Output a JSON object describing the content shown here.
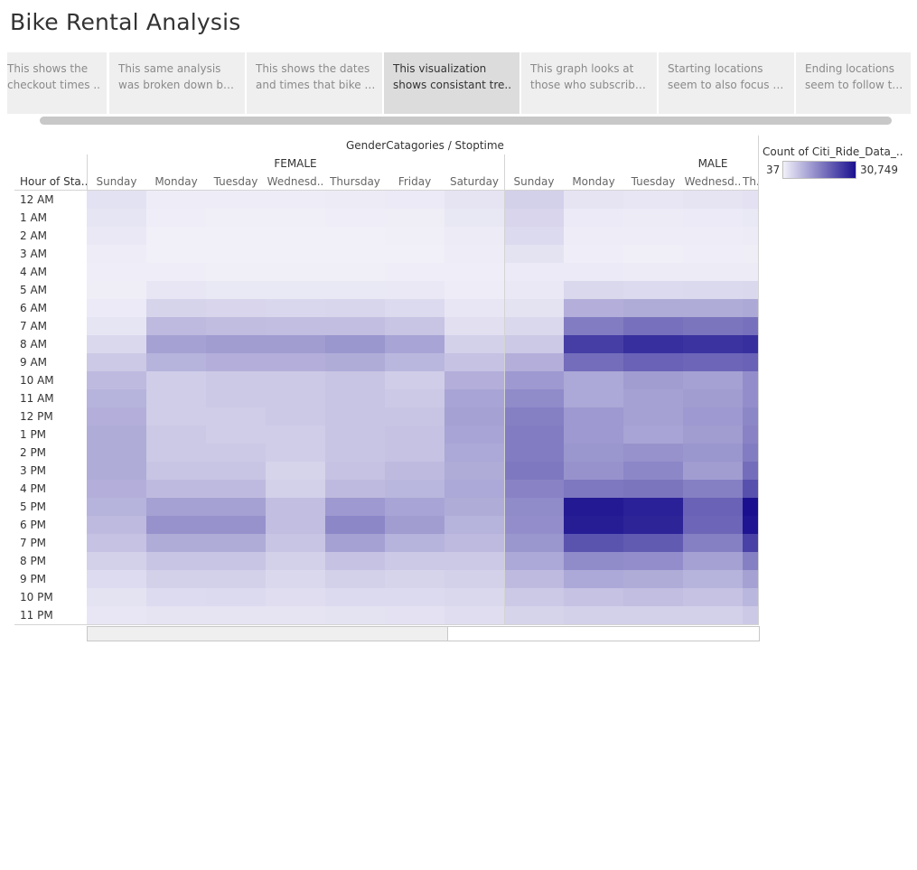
{
  "title": "Bike Rental Analysis",
  "story_points": [
    {
      "line1": "This shows the",
      "line2": "checkout times .."
    },
    {
      "line1": "This same analysis",
      "line2": "was broken down by .."
    },
    {
      "line1": "This shows the dates",
      "line2": "and times that bike re.."
    },
    {
      "line1": "This visualization",
      "line2": "shows consistant tre.."
    },
    {
      "line1": "This graph looks at",
      "line2": "those who subscribe t.."
    },
    {
      "line1": "Starting locations",
      "line2": "seem to also focus on .."
    },
    {
      "line1": "Ending locations",
      "line2": "seem to follow the .."
    }
  ],
  "active_story_index": 3,
  "colors": {
    "low": "#f2f1f9",
    "high": "#1a108f"
  },
  "chart_data": {
    "type": "heatmap",
    "column_group_title": "GenderCatagories / Stoptime",
    "row_header": "Hour of Sta..",
    "legend": {
      "title": "Count of Citi_Ride_Data_..",
      "min": 37,
      "max": 30749,
      "min_label": "37",
      "max_label": "30,749"
    },
    "groups": [
      {
        "name": "FEMALE",
        "days": [
          "Sunday",
          "Monday",
          "Tuesday",
          "Wednesd..",
          "Thursday",
          "Friday",
          "Saturday"
        ]
      },
      {
        "name": "MALE",
        "days": [
          "Sunday",
          "Monday",
          "Tuesday",
          "Wednesd..",
          "Th.."
        ]
      }
    ],
    "hours": [
      "12 AM",
      "1 AM",
      "2 AM",
      "3 AM",
      "4 AM",
      "5 AM",
      "6 AM",
      "7 AM",
      "8 AM",
      "9 AM",
      "10 AM",
      "11 AM",
      "12 PM",
      "1 PM",
      "2 PM",
      "3 PM",
      "4 PM",
      "5 PM",
      "6 PM",
      "7 PM",
      "8 PM",
      "9 PM",
      "10 PM",
      "11 PM"
    ],
    "values": {
      "FEMALE": [
        [
          2100,
          700,
          600,
          600,
          900,
          1000,
          1800
        ],
        [
          1700,
          400,
          300,
          300,
          400,
          500,
          1400
        ],
        [
          1200,
          250,
          200,
          200,
          250,
          300,
          900
        ],
        [
          700,
          150,
          120,
          120,
          150,
          200,
          600
        ],
        [
          400,
          400,
          300,
          300,
          300,
          400,
          400
        ],
        [
          500,
          1500,
          1300,
          1300,
          1300,
          1200,
          700
        ],
        [
          1000,
          4000,
          3800,
          3600,
          3700,
          3200,
          1500
        ],
        [
          1700,
          7500,
          7200,
          7000,
          7000,
          6200,
          2500
        ],
        [
          3500,
          11000,
          11500,
          11500,
          12500,
          10500,
          4500
        ],
        [
          5500,
          8500,
          9000,
          9000,
          9500,
          8000,
          6500
        ],
        [
          7500,
          5000,
          5500,
          5500,
          6000,
          5000,
          9000
        ],
        [
          8500,
          5000,
          5500,
          5500,
          6000,
          5500,
          10500
        ],
        [
          9000,
          5000,
          5000,
          5500,
          6000,
          6000,
          11000
        ],
        [
          9500,
          5500,
          5000,
          5000,
          6000,
          6500,
          10500
        ],
        [
          9500,
          5500,
          5500,
          5000,
          6000,
          6500,
          10000
        ],
        [
          9500,
          6000,
          6000,
          4000,
          6500,
          7500,
          9500
        ],
        [
          9000,
          7500,
          7500,
          4500,
          7500,
          8000,
          10000
        ],
        [
          8500,
          11000,
          11000,
          7000,
          12000,
          10500,
          9500
        ],
        [
          7500,
          13000,
          13000,
          7000,
          14500,
          11500,
          8500
        ],
        [
          6500,
          9500,
          9500,
          6000,
          11000,
          8500,
          7500
        ],
        [
          4500,
          6000,
          6000,
          4500,
          6500,
          5500,
          5500
        ],
        [
          3000,
          4500,
          4500,
          3500,
          4500,
          4000,
          4500
        ],
        [
          2000,
          3000,
          3200,
          2800,
          3200,
          3200,
          3500
        ],
        [
          1500,
          1800,
          1800,
          1800,
          2000,
          2200,
          2800
        ]
      ],
      "MALE": [
        [
          4500,
          1800,
          1500,
          1800,
          2200
        ],
        [
          3800,
          1000,
          900,
          1000,
          1300
        ],
        [
          3200,
          700,
          600,
          700,
          900
        ],
        [
          2000,
          400,
          350,
          400,
          500
        ],
        [
          1000,
          1000,
          900,
          900,
          900
        ],
        [
          1200,
          3500,
          3200,
          3300,
          3400
        ],
        [
          2000,
          9000,
          9500,
          9500,
          9800
        ],
        [
          3500,
          16000,
          17500,
          17000,
          17500
        ],
        [
          5500,
          24500,
          26500,
          26000,
          26500
        ],
        [
          9000,
          18000,
          19500,
          19000,
          19500
        ],
        [
          12000,
          10000,
          11500,
          11000,
          13500
        ],
        [
          14000,
          10000,
          11000,
          11500,
          13500
        ],
        [
          15500,
          12000,
          11000,
          12000,
          14500
        ],
        [
          16000,
          12000,
          10500,
          11500,
          15000
        ],
        [
          16000,
          12500,
          13000,
          12500,
          16000
        ],
        [
          16500,
          13000,
          14500,
          11500,
          18000
        ],
        [
          15000,
          16500,
          17000,
          15500,
          22000
        ],
        [
          14000,
          29500,
          28500,
          19500,
          30749
        ],
        [
          13500,
          29000,
          28000,
          19000,
          30000
        ],
        [
          12500,
          21500,
          20500,
          15500,
          24000
        ],
        [
          10000,
          14000,
          13500,
          11000,
          15500
        ],
        [
          7500,
          10000,
          9500,
          8500,
          11000
        ],
        [
          5500,
          6500,
          7000,
          6500,
          8000
        ],
        [
          4000,
          4500,
          4500,
          4500,
          5500
        ]
      ]
    }
  }
}
